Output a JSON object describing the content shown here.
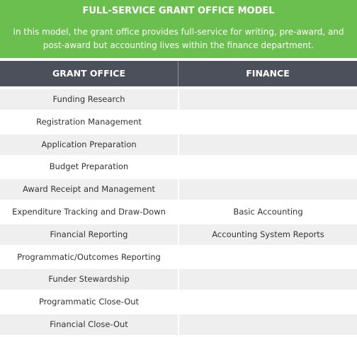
{
  "header": {
    "title": "FULL-SERVICE GRANT OFFICE MODEL",
    "subtitle": "In this model, the grant office provides full-service for writing, pre-award, and post-award but accounting lives within the finance department."
  },
  "table": {
    "columns": [
      "GRANT OFFICE",
      "FINANCE"
    ],
    "rows": [
      [
        "Funding Research",
        null
      ],
      [
        "Registration Management",
        null
      ],
      [
        "Application Preparation",
        null
      ],
      [
        "Budget Preparation",
        null
      ],
      [
        "Award Receipt and Management",
        null
      ],
      [
        "Expenditure Tracking and Draw-Down",
        "Basic Accounting"
      ],
      [
        "Financial Reporting",
        "Accounting System Reports"
      ],
      [
        "Programmatic/Outcomes Reporting",
        null
      ],
      [
        "Funder Stewardship",
        null
      ],
      [
        "Programmatic Close-Out",
        null
      ],
      [
        "Financial Close-Out",
        null
      ]
    ]
  }
}
